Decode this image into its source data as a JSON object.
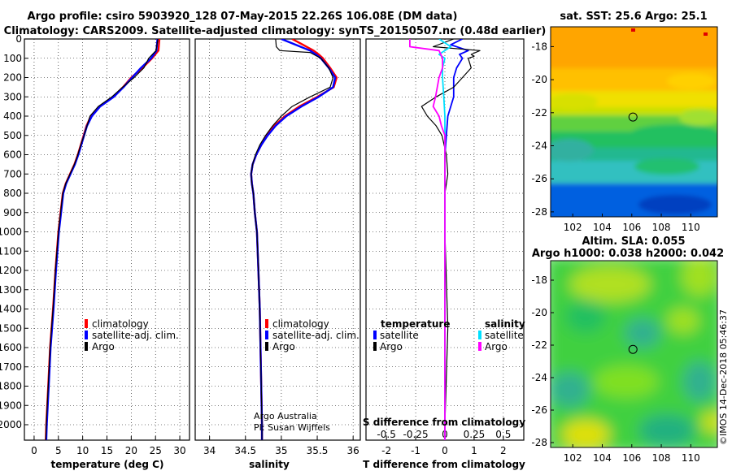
{
  "header": {
    "title1": "Argo profile: csiro 5903920_128 07-May-2015 22.26S 106.08E (DM data)",
    "title2": "Climatology: CARS2009. Satellite-adjusted climatology: synTS_20150507.nc (0.48d earlier)"
  },
  "colors": {
    "climatology": "#ff0000",
    "satellite": "#0000ff",
    "argo": "#000000",
    "sat_cyan": "#00e0ff",
    "argo_magenta": "#ff00ff"
  },
  "chart_data": [
    {
      "id": "temperature",
      "type": "line",
      "xlabel": "temperature (deg C)",
      "xticks": [
        "0",
        "5",
        "10",
        "15",
        "20",
        "25",
        "30"
      ],
      "xlim": [
        -2,
        32
      ],
      "ylim": [
        0,
        2080
      ],
      "yticks": [
        "0",
        "100",
        "200",
        "300",
        "400",
        "500",
        "600",
        "700",
        "800",
        "900",
        "1000",
        "1100",
        "1200",
        "1300",
        "1400",
        "1500",
        "1600",
        "1700",
        "1800",
        "1900",
        "2000"
      ],
      "legend": [
        "climatology",
        "satellite-adj. clim.",
        "Argo"
      ],
      "series": [
        {
          "name": "climatology",
          "depth": [
            0,
            60,
            100,
            150,
            200,
            250,
            300,
            350,
            400,
            450,
            500,
            550,
            600,
            650,
            700,
            750,
            800,
            1000,
            1200,
            1400,
            1600,
            1800,
            2000,
            2080
          ],
          "values": [
            25.8,
            25.6,
            24.3,
            22.3,
            20.0,
            18.3,
            16.3,
            13.5,
            11.7,
            10.8,
            10.2,
            9.6,
            9.0,
            8.3,
            7.4,
            6.5,
            5.9,
            5.0,
            4.4,
            3.9,
            3.3,
            2.9,
            2.5,
            2.4
          ]
        },
        {
          "name": "satellite-adj. clim.",
          "depth": [
            0,
            60,
            100,
            150,
            200,
            250,
            300,
            350,
            400,
            450,
            500,
            550,
            600,
            650,
            700,
            750,
            800,
            1000,
            1200,
            1400,
            1600,
            1800,
            2000,
            2080
          ],
          "values": [
            25.4,
            25.2,
            24.1,
            22.0,
            20.2,
            18.4,
            16.4,
            13.6,
            11.9,
            10.9,
            10.3,
            9.7,
            9.1,
            8.4,
            7.5,
            6.6,
            6.0,
            5.1,
            4.5,
            4.0,
            3.4,
            3.0,
            2.6,
            2.5
          ]
        },
        {
          "name": "Argo",
          "depth": [
            0,
            60,
            100,
            150,
            200,
            250,
            300,
            350,
            400,
            450,
            500,
            550,
            600,
            650,
            700,
            750,
            800,
            1000,
            1200,
            1400,
            1600,
            1800,
            2000,
            2080
          ],
          "values": [
            25.5,
            25.1,
            23.6,
            22.6,
            20.6,
            18.2,
            16.0,
            13.2,
            11.5,
            10.9,
            10.3,
            9.6,
            9.0,
            8.3,
            7.4,
            6.5,
            5.9,
            5.0,
            4.4,
            3.9,
            3.3,
            2.9,
            2.5,
            2.4
          ]
        }
      ]
    },
    {
      "id": "salinity",
      "type": "line",
      "xlabel": "salinity",
      "xticks": [
        "34",
        "34.5",
        "35",
        "35.5",
        "36"
      ],
      "xlim": [
        33.8,
        36.1
      ],
      "ylim": [
        0,
        2080
      ],
      "legend": [
        "climatology",
        "satellite-adj. clim.",
        "Argo"
      ],
      "credit1": "Argo Australia",
      "credit2": "PI: Susan Wijffels",
      "series": [
        {
          "name": "climatology",
          "depth": [
            0,
            30,
            60,
            80,
            100,
            150,
            200,
            250,
            300,
            350,
            400,
            450,
            500,
            550,
            600,
            650,
            700,
            750,
            800,
            900,
            1000,
            1200,
            1400,
            1600,
            1800,
            2000,
            2080
          ],
          "values": [
            35.15,
            35.3,
            35.45,
            35.52,
            35.58,
            35.68,
            35.77,
            35.73,
            35.5,
            35.25,
            35.05,
            34.9,
            34.8,
            34.72,
            34.65,
            34.6,
            34.58,
            34.59,
            34.61,
            34.63,
            34.66,
            34.68,
            34.7,
            34.71,
            34.72,
            34.73,
            34.73
          ]
        },
        {
          "name": "satellite-adj. clim.",
          "depth": [
            0,
            30,
            60,
            80,
            100,
            150,
            200,
            250,
            300,
            350,
            400,
            450,
            500,
            550,
            600,
            650,
            700,
            750,
            800,
            900,
            1000,
            1200,
            1400,
            1600,
            1800,
            2000,
            2080
          ],
          "values": [
            35.0,
            35.2,
            35.4,
            35.48,
            35.55,
            35.66,
            35.75,
            35.72,
            35.52,
            35.28,
            35.07,
            34.92,
            34.81,
            34.72,
            34.65,
            34.6,
            34.58,
            34.59,
            34.61,
            34.63,
            34.66,
            34.68,
            34.7,
            34.71,
            34.72,
            34.73,
            34.73
          ]
        },
        {
          "name": "Argo",
          "depth": [
            0,
            40,
            60,
            70,
            90,
            100,
            150,
            200,
            250,
            300,
            350,
            400,
            450,
            500,
            550,
            600,
            650,
            700,
            750,
            800,
            900,
            1000,
            1200,
            1400,
            1600,
            1800,
            2000,
            2080
          ],
          "values": [
            34.92,
            34.93,
            34.98,
            35.4,
            35.5,
            35.55,
            35.66,
            35.72,
            35.68,
            35.4,
            35.15,
            35.0,
            34.88,
            34.78,
            34.7,
            34.64,
            34.6,
            34.58,
            34.59,
            34.61,
            34.63,
            34.66,
            34.68,
            34.7,
            34.71,
            34.72,
            34.73,
            34.73
          ]
        }
      ]
    },
    {
      "id": "difference",
      "type": "line",
      "xlabel": "T difference from climatology",
      "xticks": [
        "-2",
        "-1",
        "0",
        "1",
        "2"
      ],
      "xlim": [
        -2.7,
        2.7
      ],
      "top_xlabel": "S difference from climatology",
      "top_xticks": [
        "-0.5",
        "-0.25",
        "0",
        "0.25",
        "0.5"
      ],
      "ylim": [
        0,
        2080
      ],
      "legend_temperature": "temperature",
      "legend_salinity": "salinity",
      "legend_satellite": "satellite",
      "legend_argo": "Argo",
      "series": [
        {
          "name": "T satellite",
          "depth": [
            0,
            30,
            60,
            80,
            100,
            150,
            200,
            300,
            400,
            500,
            600,
            800,
            1000,
            1500,
            2000,
            2080
          ],
          "values": [
            0.6,
            0.2,
            0.8,
            0.5,
            0.6,
            0.4,
            0.3,
            0.3,
            0.1,
            0.05,
            0.0,
            0.0,
            0.0,
            0.0,
            0.0,
            0.0
          ]
        },
        {
          "name": "T Argo",
          "depth": [
            0,
            40,
            60,
            80,
            90,
            100,
            150,
            200,
            250,
            300,
            350,
            400,
            450,
            500,
            600,
            700,
            800,
            1000,
            1500,
            2000,
            2080
          ],
          "values": [
            0.3,
            -0.4,
            1.2,
            0.9,
            1.0,
            0.8,
            0.9,
            0.6,
            0.3,
            -0.3,
            -0.8,
            -0.6,
            -0.3,
            -0.1,
            0.05,
            0.1,
            0.0,
            0.0,
            0.1,
            0.0,
            0.0
          ]
        },
        {
          "name": "S satellite",
          "depth": [
            0,
            40,
            80,
            100,
            150,
            200,
            300,
            400,
            500,
            600,
            800,
            1000,
            1500,
            2000,
            2080
          ],
          "values": [
            -0.05,
            0.05,
            -0.05,
            0.0,
            -0.02,
            -0.02,
            -0.01,
            0.0,
            0.0,
            0.0,
            0.0,
            0.0,
            0.0,
            0.0,
            0.0
          ]
        },
        {
          "name": "S Argo",
          "depth": [
            0,
            40,
            60,
            100,
            150,
            200,
            300,
            350,
            400,
            450,
            500,
            600,
            700,
            800,
            1000,
            1500,
            2000,
            2080
          ],
          "values": [
            -0.3,
            -0.3,
            -0.05,
            -0.02,
            -0.02,
            -0.05,
            -0.08,
            -0.1,
            -0.05,
            -0.03,
            0.0,
            0.0,
            0.0,
            0.0,
            0.0,
            0.0,
            0.0,
            0.0
          ]
        }
      ]
    },
    {
      "id": "sst_map",
      "type": "heatmap",
      "title": "sat. SST: 25.6  Argo: 25.1",
      "xticks": [
        "102",
        "104",
        "106",
        "108",
        "110"
      ],
      "yticks": [
        "-18",
        "-20",
        "-22",
        "-24",
        "-26",
        "-28"
      ],
      "xlim": [
        100.5,
        111.8
      ],
      "ylim": [
        -28.3,
        -16.8
      ],
      "float_position": {
        "lon": 106.08,
        "lat": -22.26
      }
    },
    {
      "id": "sla_map",
      "type": "heatmap",
      "title1": "Altim. SLA: 0.055",
      "title2": "Argo h1000: 0.038  h2000: 0.042",
      "xticks": [
        "102",
        "104",
        "106",
        "108",
        "110"
      ],
      "yticks": [
        "-18",
        "-20",
        "-22",
        "-24",
        "-26",
        "-28"
      ],
      "xlim": [
        100.5,
        111.8
      ],
      "ylim": [
        -28.3,
        -16.8
      ],
      "float_position": {
        "lon": 106.08,
        "lat": -22.26
      }
    }
  ],
  "footer": {
    "stamp": "©IMOS 14-Dec-2018 05:46:37"
  }
}
